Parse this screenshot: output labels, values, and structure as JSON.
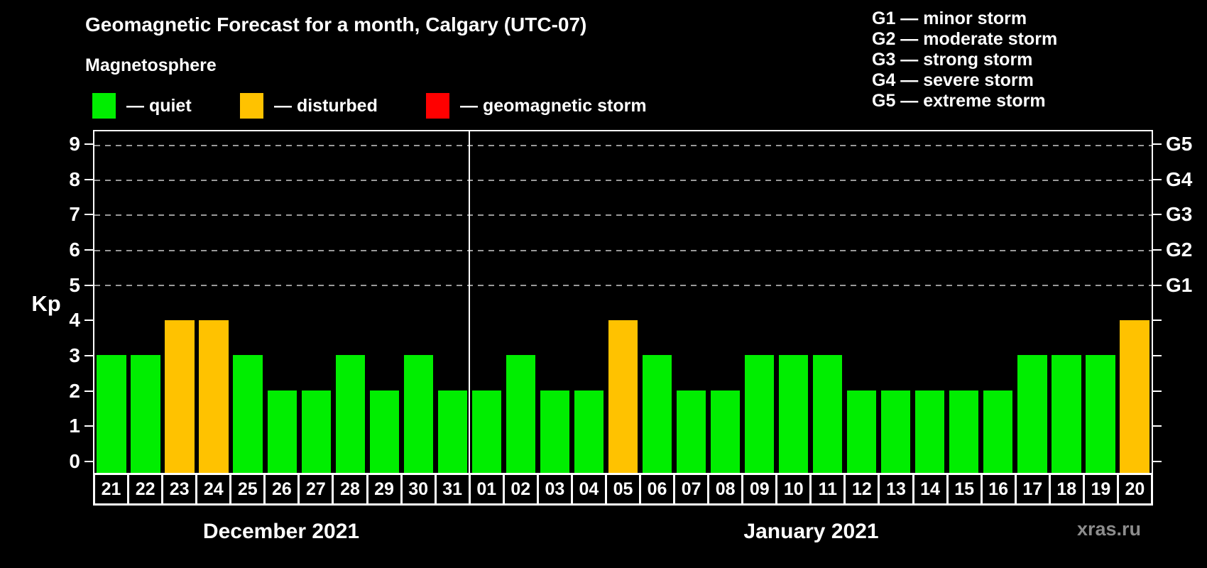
{
  "title": "Geomagnetic Forecast for a month, Calgary (UTC-07)",
  "subtitle": "Magnetosphere",
  "legend": {
    "items": [
      {
        "key": "quiet",
        "label": "— quiet"
      },
      {
        "key": "disturbed",
        "label": "— disturbed"
      },
      {
        "key": "storm",
        "label": "— geomagnetic storm"
      }
    ]
  },
  "g_legend": {
    "items": [
      "G1 — minor storm",
      "G2 — moderate storm",
      "G3 — strong storm",
      "G4 — severe storm",
      "G5 — extreme storm"
    ]
  },
  "watermark": "xras.ru",
  "colors": {
    "quiet": "#00ee00",
    "disturbed": "#ffc200",
    "storm": "#ff0000",
    "background": "#000000",
    "axis": "#ffffff",
    "grid": "#9a9a9a"
  },
  "chart_data": {
    "type": "bar",
    "title": "Geomagnetic Forecast for a month, Calgary (UTC-07)",
    "xlabel": "",
    "ylabel": "Kp",
    "ylim": [
      0,
      9
    ],
    "y_ticks": [
      0,
      1,
      2,
      3,
      4,
      5,
      6,
      7,
      8,
      9
    ],
    "gridlines": [
      5,
      6,
      7,
      8,
      9
    ],
    "grid": "dashed, only at storm levels G1–G5",
    "legend_position": "top",
    "right_axis_labels": [
      {
        "kp": 5,
        "label": "G1"
      },
      {
        "kp": 6,
        "label": "G2"
      },
      {
        "kp": 7,
        "label": "G3"
      },
      {
        "kp": 8,
        "label": "G4"
      },
      {
        "kp": 9,
        "label": "G5"
      }
    ],
    "months": [
      {
        "label": "December 2021",
        "days": 11
      },
      {
        "label": "January 2021",
        "days": 20
      }
    ],
    "days": [
      {
        "date": "21",
        "kp": 3,
        "status": "quiet"
      },
      {
        "date": "22",
        "kp": 3,
        "status": "quiet"
      },
      {
        "date": "23",
        "kp": 4,
        "status": "disturbed"
      },
      {
        "date": "24",
        "kp": 4,
        "status": "disturbed"
      },
      {
        "date": "25",
        "kp": 3,
        "status": "quiet"
      },
      {
        "date": "26",
        "kp": 2,
        "status": "quiet"
      },
      {
        "date": "27",
        "kp": 2,
        "status": "quiet"
      },
      {
        "date": "28",
        "kp": 3,
        "status": "quiet"
      },
      {
        "date": "29",
        "kp": 2,
        "status": "quiet"
      },
      {
        "date": "30",
        "kp": 3,
        "status": "quiet"
      },
      {
        "date": "31",
        "kp": 2,
        "status": "quiet"
      },
      {
        "date": "01",
        "kp": 2,
        "status": "quiet"
      },
      {
        "date": "02",
        "kp": 3,
        "status": "quiet"
      },
      {
        "date": "03",
        "kp": 2,
        "status": "quiet"
      },
      {
        "date": "04",
        "kp": 2,
        "status": "quiet"
      },
      {
        "date": "05",
        "kp": 4,
        "status": "disturbed"
      },
      {
        "date": "06",
        "kp": 3,
        "status": "quiet"
      },
      {
        "date": "07",
        "kp": 2,
        "status": "quiet"
      },
      {
        "date": "08",
        "kp": 2,
        "status": "quiet"
      },
      {
        "date": "09",
        "kp": 3,
        "status": "quiet"
      },
      {
        "date": "10",
        "kp": 3,
        "status": "quiet"
      },
      {
        "date": "11",
        "kp": 3,
        "status": "quiet"
      },
      {
        "date": "12",
        "kp": 2,
        "status": "quiet"
      },
      {
        "date": "13",
        "kp": 2,
        "status": "quiet"
      },
      {
        "date": "14",
        "kp": 2,
        "status": "quiet"
      },
      {
        "date": "15",
        "kp": 2,
        "status": "quiet"
      },
      {
        "date": "16",
        "kp": 2,
        "status": "quiet"
      },
      {
        "date": "17",
        "kp": 3,
        "status": "quiet"
      },
      {
        "date": "18",
        "kp": 3,
        "status": "quiet"
      },
      {
        "date": "19",
        "kp": 3,
        "status": "quiet"
      },
      {
        "date": "20",
        "kp": 4,
        "status": "disturbed"
      }
    ]
  }
}
